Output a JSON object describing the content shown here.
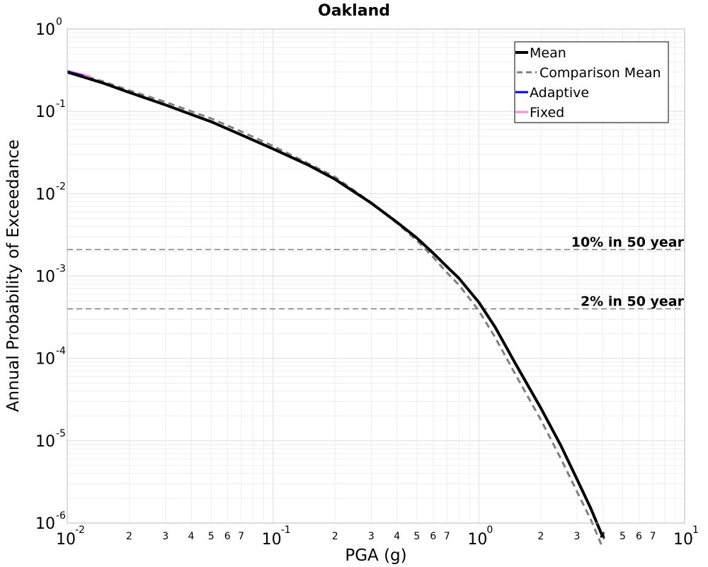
{
  "chart_data": {
    "type": "line",
    "title": "Oakland",
    "xlabel": "PGA (g)",
    "ylabel": "Annual Probability of Exceedance",
    "xscale": "log",
    "yscale": "log",
    "xlim": [
      0.01,
      10
    ],
    "ylim": [
      1e-06,
      1
    ],
    "grid": true,
    "legend_position": "top-right",
    "x_major_ticks": [
      {
        "base": "10",
        "exp": "-2"
      },
      {
        "base": "10",
        "exp": "-1"
      },
      {
        "base": "10",
        "exp": "0"
      },
      {
        "base": "10",
        "exp": "1"
      }
    ],
    "y_major_ticks": [
      {
        "base": "10",
        "exp": "0"
      },
      {
        "base": "10",
        "exp": "-1"
      },
      {
        "base": "10",
        "exp": "-2"
      },
      {
        "base": "10",
        "exp": "-3"
      },
      {
        "base": "10",
        "exp": "-4"
      },
      {
        "base": "10",
        "exp": "-5"
      },
      {
        "base": "10",
        "exp": "-6"
      }
    ],
    "x_minor_tick_labels": [
      "2",
      "3",
      "4",
      "5",
      "6",
      "7"
    ],
    "series": [
      {
        "name": "Mean",
        "color": "#000000",
        "style": "solid",
        "x": [
          0.01,
          0.015,
          0.02,
          0.03,
          0.05,
          0.07,
          0.1,
          0.15,
          0.2,
          0.3,
          0.4,
          0.5,
          0.6,
          0.7,
          0.8,
          1.0,
          1.2,
          1.5,
          2.0,
          2.5,
          3.0,
          3.5,
          4.0
        ],
        "y": [
          0.3,
          0.22,
          0.17,
          0.12,
          0.075,
          0.052,
          0.035,
          0.022,
          0.015,
          0.0077,
          0.0045,
          0.0029,
          0.0019,
          0.0013,
          0.00094,
          0.00048,
          0.00024,
          8.8e-05,
          2.5e-05,
          8.8e-06,
          3.4e-06,
          1.5e-06,
          6.8e-07
        ]
      },
      {
        "name": "Comparison Mean",
        "color": "#808080",
        "style": "dashed",
        "x": [
          0.01,
          0.015,
          0.02,
          0.03,
          0.05,
          0.07,
          0.1,
          0.15,
          0.2,
          0.3,
          0.4,
          0.5,
          0.6,
          0.7,
          0.8,
          1.0,
          1.2,
          1.5,
          2.0,
          2.5,
          3.0,
          3.5,
          4.0
        ],
        "y": [
          0.31,
          0.23,
          0.18,
          0.13,
          0.082,
          0.057,
          0.038,
          0.023,
          0.016,
          0.0078,
          0.0044,
          0.0027,
          0.0017,
          0.0011,
          0.00078,
          0.00038,
          0.00018,
          6.5e-05,
          1.8e-05,
          6.1e-06,
          2.4e-06,
          1.1e-06,
          5e-07
        ]
      },
      {
        "name": "Adaptive",
        "color": "#0000ff",
        "style": "solid",
        "x": [
          0.01,
          0.012
        ],
        "y": [
          0.305,
          0.27
        ]
      },
      {
        "name": "Fixed",
        "color": "#ff88dd",
        "style": "solid",
        "x": [
          0.01,
          0.013
        ],
        "y": [
          0.312,
          0.265
        ]
      }
    ],
    "reference_lines": [
      {
        "label": "10% in 50 year",
        "y": 0.0021
      },
      {
        "label": "2% in 50 year",
        "y": 0.0004
      }
    ]
  }
}
